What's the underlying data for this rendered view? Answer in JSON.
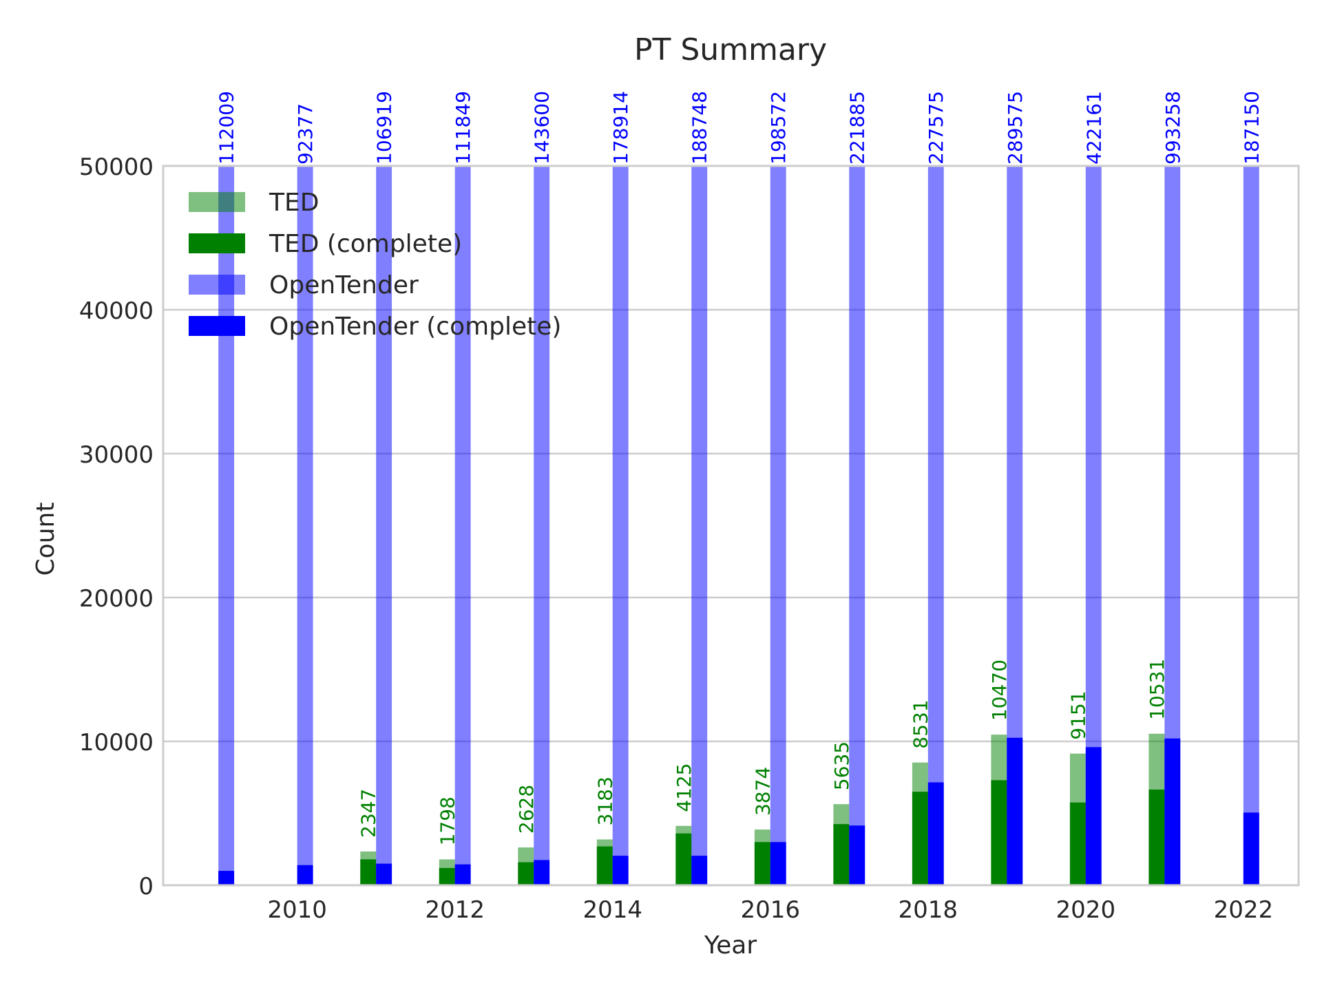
{
  "chart_data": {
    "type": "bar",
    "title": "PT Summary",
    "xlabel": "Year",
    "ylabel": "Count",
    "xlim": [
      2008.3,
      2022.7
    ],
    "ylim": [
      0,
      50000
    ],
    "yticks": [
      0,
      10000,
      20000,
      30000,
      40000,
      50000
    ],
    "xticks": [
      2010,
      2012,
      2014,
      2016,
      2018,
      2020,
      2022
    ],
    "grid": "horizontal",
    "legend_position": "top-left",
    "colors": {
      "ted": "#008000",
      "opentender": "#0000ff"
    },
    "series": [
      {
        "name": "TED",
        "x": [
          2011,
          2012,
          2013,
          2014,
          2015,
          2016,
          2017,
          2018,
          2019,
          2020,
          2021
        ],
        "values": [
          2347,
          1798,
          2628,
          3183,
          4125,
          3874,
          5635,
          8531,
          10470,
          9151,
          10531
        ],
        "labels": [
          "2347",
          "1798",
          "2628",
          "3183",
          "4125",
          "3874",
          "5635",
          "8531",
          "10470",
          "9151",
          "10531"
        ]
      },
      {
        "name": "TED (complete)",
        "x": [
          2011,
          2012,
          2013,
          2014,
          2015,
          2016,
          2017,
          2018,
          2019,
          2020,
          2021
        ],
        "values": [
          1800,
          1200,
          1600,
          2700,
          3600,
          3000,
          4250,
          6500,
          7300,
          5750,
          6650
        ]
      },
      {
        "name": "OpenTender",
        "x": [
          2009,
          2010,
          2011,
          2012,
          2013,
          2014,
          2015,
          2016,
          2017,
          2018,
          2019,
          2020,
          2021,
          2022
        ],
        "values": [
          112009,
          92377,
          106919,
          111849,
          143600,
          178914,
          188748,
          198572,
          221885,
          227575,
          289575,
          422161,
          993258,
          187150
        ],
        "labels": [
          "112009",
          "92377",
          "106919",
          "111849",
          "143600",
          "178914",
          "188748",
          "198572",
          "221885",
          "227575",
          "289575",
          "422161",
          "993258",
          "187150"
        ]
      },
      {
        "name": "OpenTender (complete)",
        "x": [
          2009,
          2010,
          2011,
          2012,
          2013,
          2014,
          2015,
          2016,
          2017,
          2018,
          2019,
          2020,
          2021,
          2022
        ],
        "values": [
          1000,
          1400,
          1500,
          1450,
          1750,
          2050,
          2050,
          3000,
          4150,
          7150,
          10250,
          9600,
          10200,
          5050
        ]
      }
    ]
  }
}
